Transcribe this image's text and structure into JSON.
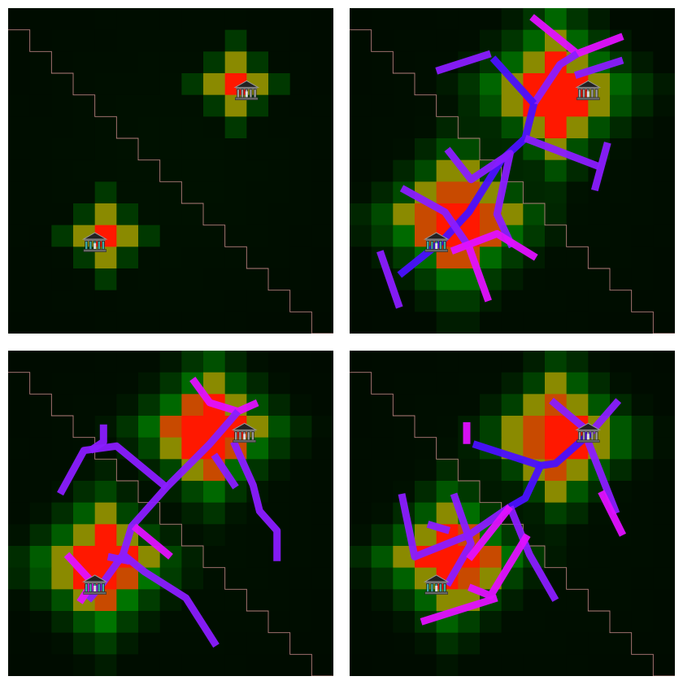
{
  "grid_size": 15,
  "colors": {
    "background": "#000000",
    "low_heat": "#004000",
    "mid_heat": "#007800",
    "high_heat": "#8a8a00",
    "max_heat": "#ff1800",
    "boundary_line": "#c88a8a",
    "road_blue": "#4a10ff",
    "road_violet": "#8a1cff",
    "road_magenta": "#e010ff"
  },
  "icons": [
    "bank-icon"
  ],
  "panels": [
    {
      "id": "panel-0",
      "buildings": [
        {
          "icon": "bank-icon",
          "col": 11.0,
          "row": 3.8
        },
        {
          "icon": "bank-icon",
          "col": 4.0,
          "row": 10.8
        }
      ],
      "heat_sources": [
        {
          "col": 10.5,
          "row": 3.5,
          "intensity": 1.0,
          "spread": 1.3
        },
        {
          "col": 4.5,
          "row": 10.5,
          "intensity": 1.0,
          "spread": 1.3
        }
      ],
      "roads": []
    },
    {
      "id": "panel-1",
      "buildings": [
        {
          "icon": "bank-icon",
          "col": 11.0,
          "row": 3.8
        },
        {
          "icon": "bank-icon",
          "col": 4.0,
          "row": 10.8
        }
      ],
      "heat_sources": [
        {
          "col": 9.5,
          "row": 3.8,
          "intensity": 1.15,
          "spread": 2.6
        },
        {
          "col": 5.0,
          "row": 9.8,
          "intensity": 1.15,
          "spread": 2.6
        }
      ],
      "roads": [
        {
          "color": "road_magenta",
          "pts": [
            [
              8.4,
              0.4
            ],
            [
              10.5,
              2.1
            ],
            [
              12.6,
              1.3
            ]
          ]
        },
        {
          "color": "road_violet",
          "pts": [
            [
              6.5,
              2.1
            ],
            [
              4.0,
              2.9
            ]
          ]
        },
        {
          "color": "road_violet",
          "pts": [
            [
              10.5,
              2.1
            ],
            [
              9.7,
              2.6
            ],
            [
              8.5,
              4.4
            ]
          ]
        },
        {
          "color": "road_violet",
          "pts": [
            [
              10.4,
              3.1
            ],
            [
              12.6,
              2.4
            ]
          ]
        },
        {
          "color": "road_blue",
          "pts": [
            [
              8.5,
              4.4
            ],
            [
              6.6,
              2.3
            ]
          ]
        },
        {
          "color": "road_blue",
          "pts": [
            [
              8.5,
              4.4
            ],
            [
              8.1,
              6.0
            ],
            [
              7.0,
              7.0
            ],
            [
              5.5,
              9.4
            ],
            [
              4.3,
              10.7
            ],
            [
              2.3,
              12.3
            ]
          ]
        },
        {
          "color": "road_violet",
          "pts": [
            [
              8.1,
              6.0
            ],
            [
              11.5,
              7.3
            ]
          ]
        },
        {
          "color": "road_violet",
          "pts": [
            [
              11.9,
              6.2
            ],
            [
              11.3,
              8.4
            ]
          ]
        },
        {
          "color": "road_violet",
          "pts": [
            [
              4.5,
              6.5
            ],
            [
              5.6,
              7.9
            ],
            [
              7.4,
              6.7
            ],
            [
              6.8,
              9.5
            ],
            [
              7.5,
              11.0
            ]
          ]
        },
        {
          "color": "road_violet",
          "pts": [
            [
              2.4,
              8.3
            ],
            [
              4.4,
              9.4
            ],
            [
              5.5,
              11.0
            ]
          ]
        },
        {
          "color": "road_magenta",
          "pts": [
            [
              4.7,
              11.2
            ],
            [
              6.8,
              10.4
            ],
            [
              8.6,
              11.5
            ]
          ]
        },
        {
          "color": "road_magenta",
          "pts": [
            [
              5.5,
              11.0
            ],
            [
              6.4,
              13.5
            ]
          ]
        },
        {
          "color": "road_violet",
          "pts": [
            [
              1.4,
              11.2
            ],
            [
              2.3,
              13.8
            ]
          ]
        }
      ]
    },
    {
      "id": "panel-2",
      "buildings": [
        {
          "icon": "bank-icon",
          "col": 10.9,
          "row": 3.8
        },
        {
          "icon": "bank-icon",
          "col": 4.0,
          "row": 10.8
        }
      ],
      "heat_sources": [
        {
          "col": 9.3,
          "row": 3.7,
          "intensity": 1.15,
          "spread": 2.4
        },
        {
          "col": 4.3,
          "row": 9.9,
          "intensity": 1.15,
          "spread": 2.4
        }
      ],
      "roads": [
        {
          "color": "road_magenta",
          "pts": [
            [
              8.5,
              1.3
            ],
            [
              9.3,
              2.4
            ],
            [
              10.6,
              2.8
            ],
            [
              11.5,
              2.4
            ]
          ]
        },
        {
          "color": "road_violet",
          "pts": [
            [
              10.6,
              2.8
            ],
            [
              9.3,
              4.3
            ],
            [
              7.3,
              6.3
            ],
            [
              5.7,
              8.1
            ],
            [
              5.3,
              9.4
            ],
            [
              4.3,
              10.8
            ],
            [
              3.7,
              11.5
            ]
          ]
        },
        {
          "color": "road_violet",
          "pts": [
            [
              10.4,
              4.2
            ],
            [
              11.3,
              6.2
            ],
            [
              11.6,
              7.4
            ],
            [
              12.4,
              8.3
            ],
            [
              12.4,
              9.7
            ]
          ]
        },
        {
          "color": "road_violet",
          "pts": [
            [
              9.5,
              4.8
            ],
            [
              10.5,
              6.3
            ]
          ]
        },
        {
          "color": "road_violet",
          "pts": [
            [
              7.3,
              6.3
            ],
            [
              5.0,
              4.4
            ],
            [
              3.5,
              4.6
            ],
            [
              2.4,
              6.6
            ]
          ]
        },
        {
          "color": "road_violet",
          "pts": [
            [
              4.4,
              3.4
            ],
            [
              4.4,
              4.2
            ],
            [
              3.8,
              4.6
            ]
          ]
        },
        {
          "color": "road_violet",
          "pts": [
            [
              5.3,
              9.4
            ],
            [
              6.3,
              10.2
            ],
            [
              8.2,
              11.4
            ],
            [
              9.6,
              13.6
            ]
          ]
        },
        {
          "color": "road_magenta",
          "pts": [
            [
              5.8,
              8.1
            ],
            [
              7.5,
              9.5
            ]
          ]
        },
        {
          "color": "road_magenta",
          "pts": [
            [
              2.7,
              9.4
            ],
            [
              3.9,
              10.7
            ],
            [
              3.3,
              11.6
            ]
          ]
        },
        {
          "color": "road_violet",
          "pts": [
            [
              4.6,
              9.5
            ],
            [
              5.6,
              9.7
            ]
          ]
        }
      ]
    },
    {
      "id": "panel-3",
      "buildings": [
        {
          "icon": "bank-icon",
          "col": 11.0,
          "row": 3.8
        },
        {
          "icon": "bank-icon",
          "col": 4.0,
          "row": 10.8
        }
      ],
      "heat_sources": [
        {
          "col": 9.7,
          "row": 4.0,
          "intensity": 1.15,
          "spread": 2.4
        },
        {
          "col": 4.7,
          "row": 9.6,
          "intensity": 1.15,
          "spread": 2.4
        }
      ],
      "roads": [
        {
          "color": "road_violet",
          "pts": [
            [
              9.3,
              2.3
            ],
            [
              11.1,
              3.8
            ],
            [
              12.4,
              2.3
            ]
          ]
        },
        {
          "color": "road_blue",
          "pts": [
            [
              11.1,
              3.8
            ],
            [
              9.5,
              5.2
            ],
            [
              8.8,
              5.3
            ],
            [
              8.1,
              6.8
            ],
            [
              7.4,
              7.2
            ]
          ]
        },
        {
          "color": "road_blue",
          "pts": [
            [
              8.8,
              5.3
            ],
            [
              5.7,
              4.3
            ]
          ]
        },
        {
          "color": "road_violet",
          "pts": [
            [
              11.0,
              4.2
            ],
            [
              12.3,
              7.5
            ]
          ]
        },
        {
          "color": "road_magenta",
          "pts": [
            [
              11.6,
              6.5
            ],
            [
              12.6,
              8.5
            ]
          ]
        },
        {
          "color": "road_magenta",
          "pts": [
            [
              5.4,
              3.3
            ],
            [
              5.4,
              4.3
            ]
          ]
        },
        {
          "color": "road_violet",
          "pts": [
            [
              7.4,
              7.2
            ],
            [
              5.5,
              8.5
            ],
            [
              3.0,
              9.5
            ],
            [
              2.4,
              6.6
            ]
          ]
        },
        {
          "color": "road_violet",
          "pts": [
            [
              7.4,
              7.2
            ],
            [
              8.3,
              9.4
            ],
            [
              9.5,
              11.5
            ]
          ]
        },
        {
          "color": "road_violet",
          "pts": [
            [
              4.8,
              6.6
            ],
            [
              5.6,
              8.9
            ],
            [
              4.5,
              10.8
            ]
          ]
        },
        {
          "color": "road_magenta",
          "pts": [
            [
              7.4,
              7.2
            ],
            [
              5.5,
              9.6
            ]
          ]
        },
        {
          "color": "road_magenta",
          "pts": [
            [
              8.2,
              8.5
            ],
            [
              6.5,
              11.3
            ],
            [
              5.5,
              10.9
            ]
          ]
        },
        {
          "color": "road_magenta",
          "pts": [
            [
              6.8,
              11.4
            ],
            [
              3.3,
              12.5
            ]
          ]
        },
        {
          "color": "road_violet",
          "pts": [
            [
              3.6,
              8.0
            ],
            [
              4.6,
              8.3
            ]
          ]
        }
      ]
    }
  ]
}
